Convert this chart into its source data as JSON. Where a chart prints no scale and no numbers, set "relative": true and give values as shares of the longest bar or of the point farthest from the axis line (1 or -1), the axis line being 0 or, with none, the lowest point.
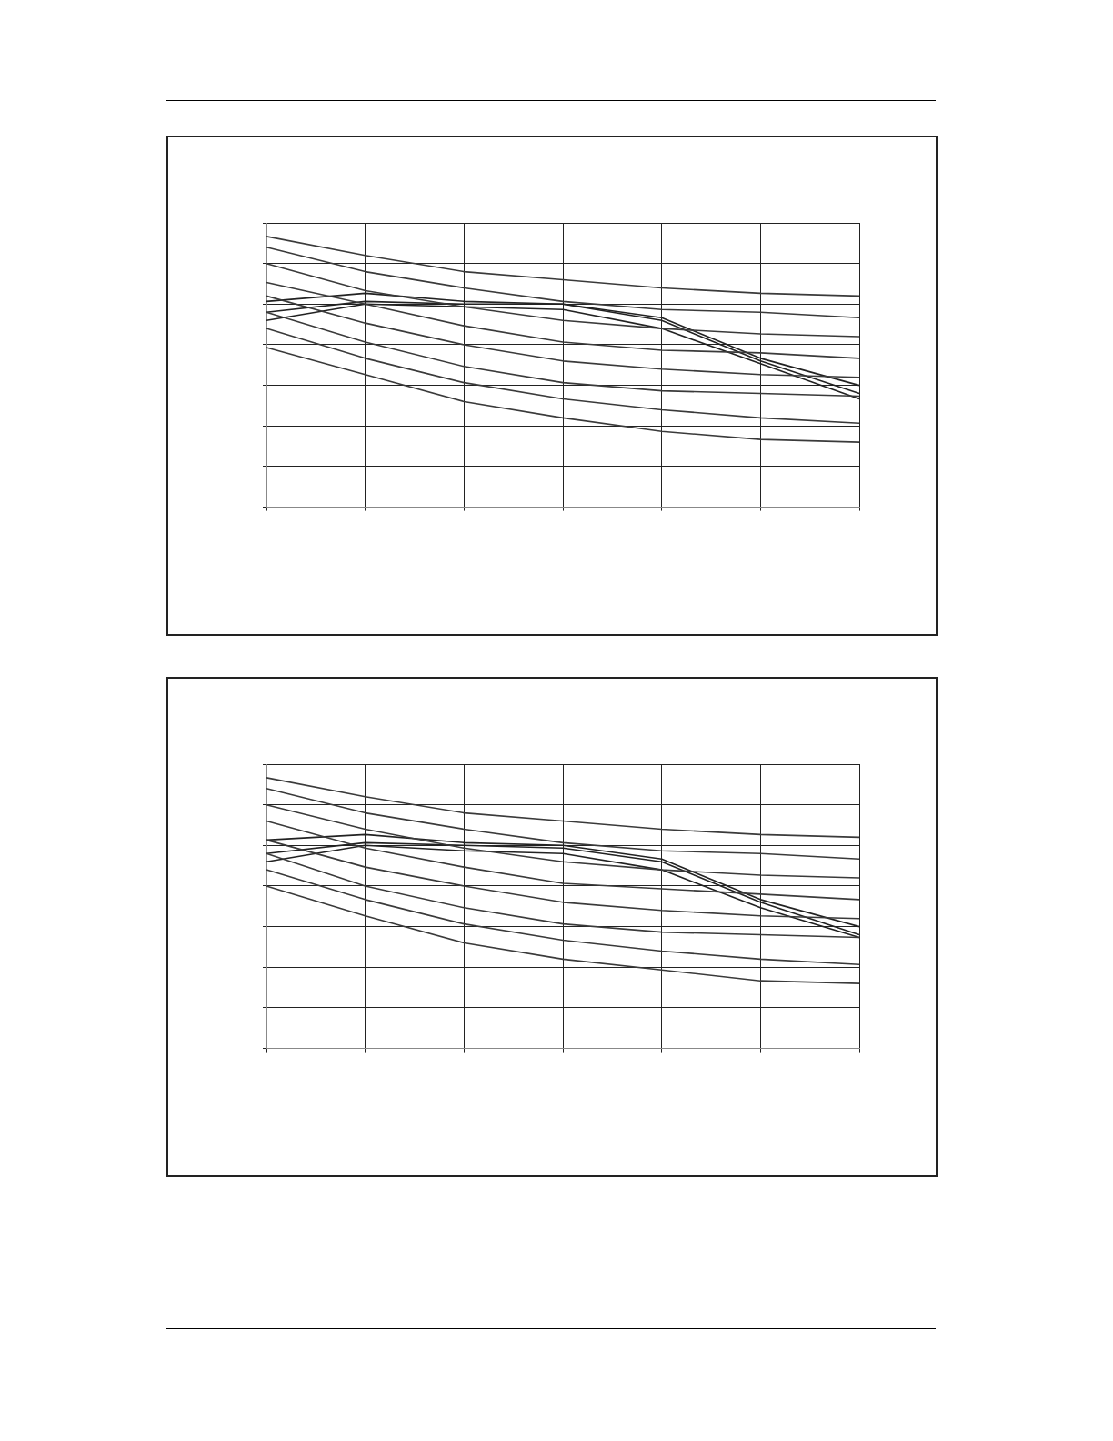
{
  "chart_data": [
    {
      "type": "line",
      "relative": true,
      "grid": true,
      "marker": "none",
      "categories": [
        null,
        null,
        null,
        null,
        null,
        null,
        null
      ],
      "series": [
        {
          "color": "#3a3a3a",
          "values": [
            1.0,
            0.93,
            0.87,
            0.84,
            0.81,
            0.79,
            0.78
          ]
        },
        {
          "color": "#3a3a3a",
          "values": [
            0.96,
            0.87,
            0.81,
            0.76,
            0.73,
            0.72,
            0.7
          ]
        },
        {
          "color": "#3a3a3a",
          "values": [
            0.9,
            0.8,
            0.74,
            0.69,
            0.66,
            0.64,
            0.63
          ]
        },
        {
          "color": "#3a3a3a",
          "values": [
            0.83,
            0.75,
            0.67,
            0.61,
            0.58,
            0.57,
            0.55
          ]
        },
        {
          "color": "#3a3a3a",
          "values": [
            0.78,
            0.68,
            0.6,
            0.54,
            0.51,
            0.49,
            0.48
          ]
        },
        {
          "color": "#3a3a3a",
          "values": [
            0.72,
            0.61,
            0.52,
            0.46,
            0.43,
            0.42,
            0.41
          ]
        },
        {
          "color": "#3a3a3a",
          "values": [
            0.66,
            0.55,
            0.46,
            0.4,
            0.36,
            0.33,
            0.31
          ]
        },
        {
          "color": "#3a3a3a",
          "values": [
            0.59,
            0.49,
            0.39,
            0.33,
            0.28,
            0.25,
            0.24
          ]
        },
        {
          "color": "#222222",
          "values": [
            0.76,
            0.79,
            0.76,
            0.75,
            0.7,
            0.55,
            0.45
          ]
        },
        {
          "color": "#222222",
          "values": [
            0.72,
            0.76,
            0.75,
            0.75,
            0.69,
            0.54,
            0.42
          ]
        },
        {
          "color": "#222222",
          "values": [
            0.69,
            0.75,
            0.74,
            0.73,
            0.66,
            0.53,
            0.4
          ]
        }
      ]
    },
    {
      "type": "line",
      "relative": true,
      "grid": true,
      "marker": "none",
      "categories": [
        null,
        null,
        null,
        null,
        null,
        null,
        null
      ],
      "series": [
        {
          "color": "#3a3a3a",
          "values": [
            1.0,
            0.93,
            0.87,
            0.84,
            0.81,
            0.79,
            0.78
          ]
        },
        {
          "color": "#3a3a3a",
          "values": [
            0.96,
            0.87,
            0.81,
            0.76,
            0.73,
            0.72,
            0.7
          ]
        },
        {
          "color": "#3a3a3a",
          "values": [
            0.9,
            0.81,
            0.74,
            0.69,
            0.66,
            0.64,
            0.63
          ]
        },
        {
          "color": "#3a3a3a",
          "values": [
            0.84,
            0.74,
            0.67,
            0.61,
            0.59,
            0.57,
            0.55
          ]
        },
        {
          "color": "#3a3a3a",
          "values": [
            0.77,
            0.67,
            0.6,
            0.54,
            0.51,
            0.49,
            0.48
          ]
        },
        {
          "color": "#3a3a3a",
          "values": [
            0.72,
            0.6,
            0.52,
            0.46,
            0.43,
            0.42,
            0.41
          ]
        },
        {
          "color": "#3a3a3a",
          "values": [
            0.66,
            0.55,
            0.46,
            0.4,
            0.36,
            0.33,
            0.31
          ]
        },
        {
          "color": "#3a3a3a",
          "values": [
            0.6,
            0.49,
            0.39,
            0.33,
            0.29,
            0.25,
            0.24
          ]
        },
        {
          "color": "#222222",
          "values": [
            0.77,
            0.79,
            0.76,
            0.75,
            0.7,
            0.55,
            0.45
          ]
        },
        {
          "color": "#222222",
          "values": [
            0.72,
            0.76,
            0.75,
            0.74,
            0.69,
            0.54,
            0.42
          ]
        },
        {
          "color": "#222222",
          "values": [
            0.69,
            0.75,
            0.73,
            0.72,
            0.66,
            0.52,
            0.41
          ]
        }
      ]
    }
  ]
}
